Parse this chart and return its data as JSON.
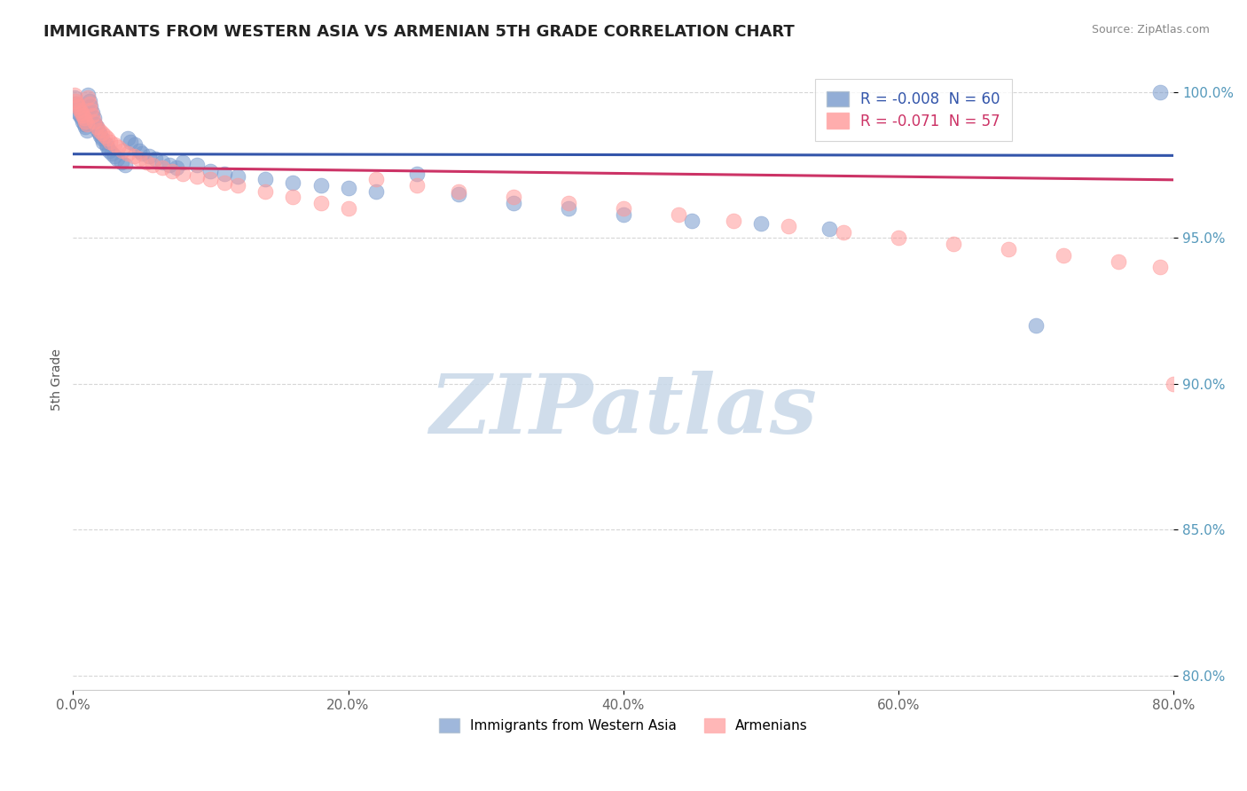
{
  "title": "IMMIGRANTS FROM WESTERN ASIA VS ARMENIAN 5TH GRADE CORRELATION CHART",
  "source": "Source: ZipAtlas.com",
  "ylabel": "5th Grade",
  "series1_label": "Immigrants from Western Asia",
  "series2_label": "Armenians",
  "R1": -0.008,
  "N1": 60,
  "R2": -0.071,
  "N2": 57,
  "color1": "#7799cc",
  "color2": "#ff9999",
  "trendline1_color": "#3355aa",
  "trendline2_color": "#cc3366",
  "xlim": [
    0.0,
    0.8
  ],
  "ylim": [
    0.795,
    1.008
  ],
  "xtick_vals": [
    0.0,
    0.2,
    0.4,
    0.6,
    0.8
  ],
  "xtick_labels": [
    "0.0%",
    "20.0%",
    "40.0%",
    "60.0%",
    "80.0%"
  ],
  "ytick_vals": [
    0.8,
    0.85,
    0.9,
    0.95,
    1.0
  ],
  "ytick_labels": [
    "80.0%",
    "85.0%",
    "90.0%",
    "95.0%",
    "100.0%"
  ],
  "blue_x": [
    0.001,
    0.002,
    0.003,
    0.004,
    0.005,
    0.006,
    0.007,
    0.008,
    0.009,
    0.01,
    0.011,
    0.012,
    0.013,
    0.014,
    0.015,
    0.016,
    0.017,
    0.018,
    0.019,
    0.02,
    0.021,
    0.022,
    0.024,
    0.025,
    0.026,
    0.028,
    0.03,
    0.032,
    0.035,
    0.038,
    0.04,
    0.042,
    0.045,
    0.048,
    0.05,
    0.055,
    0.06,
    0.065,
    0.07,
    0.075,
    0.08,
    0.09,
    0.1,
    0.11,
    0.12,
    0.14,
    0.16,
    0.18,
    0.2,
    0.22,
    0.25,
    0.28,
    0.32,
    0.36,
    0.4,
    0.45,
    0.5,
    0.55,
    0.7,
    0.79
  ],
  "blue_y": [
    0.998,
    0.996,
    0.995,
    0.993,
    0.992,
    0.991,
    0.99,
    0.989,
    0.988,
    0.987,
    0.999,
    0.997,
    0.995,
    0.993,
    0.991,
    0.989,
    0.988,
    0.987,
    0.986,
    0.985,
    0.984,
    0.983,
    0.982,
    0.981,
    0.98,
    0.979,
    0.978,
    0.977,
    0.976,
    0.975,
    0.984,
    0.983,
    0.982,
    0.98,
    0.979,
    0.978,
    0.977,
    0.976,
    0.975,
    0.974,
    0.976,
    0.975,
    0.973,
    0.972,
    0.971,
    0.97,
    0.969,
    0.968,
    0.967,
    0.966,
    0.972,
    0.965,
    0.962,
    0.96,
    0.958,
    0.956,
    0.955,
    0.953,
    0.92,
    1.0
  ],
  "pink_x": [
    0.001,
    0.002,
    0.003,
    0.004,
    0.005,
    0.006,
    0.007,
    0.008,
    0.009,
    0.01,
    0.011,
    0.012,
    0.013,
    0.014,
    0.015,
    0.017,
    0.019,
    0.021,
    0.023,
    0.025,
    0.027,
    0.03,
    0.033,
    0.036,
    0.04,
    0.044,
    0.048,
    0.053,
    0.058,
    0.065,
    0.072,
    0.08,
    0.09,
    0.1,
    0.11,
    0.12,
    0.14,
    0.16,
    0.18,
    0.2,
    0.22,
    0.25,
    0.28,
    0.32,
    0.36,
    0.4,
    0.44,
    0.48,
    0.52,
    0.56,
    0.6,
    0.64,
    0.68,
    0.72,
    0.76,
    0.79,
    0.8
  ],
  "pink_y": [
    0.999,
    0.997,
    0.996,
    0.995,
    0.994,
    0.993,
    0.992,
    0.991,
    0.99,
    0.989,
    0.998,
    0.996,
    0.994,
    0.992,
    0.99,
    0.988,
    0.987,
    0.986,
    0.985,
    0.984,
    0.983,
    0.982,
    0.981,
    0.98,
    0.979,
    0.978,
    0.977,
    0.976,
    0.975,
    0.974,
    0.973,
    0.972,
    0.971,
    0.97,
    0.969,
    0.968,
    0.966,
    0.964,
    0.962,
    0.96,
    0.97,
    0.968,
    0.966,
    0.964,
    0.962,
    0.96,
    0.958,
    0.956,
    0.954,
    0.952,
    0.95,
    0.948,
    0.946,
    0.944,
    0.942,
    0.94,
    0.9
  ],
  "watermark_text": "ZIPatlas",
  "watermark_color": "#c8d8e8",
  "background_color": "#ffffff",
  "grid_color": "#cccccc",
  "ytick_color": "#5599bb",
  "xtick_color": "#666666"
}
